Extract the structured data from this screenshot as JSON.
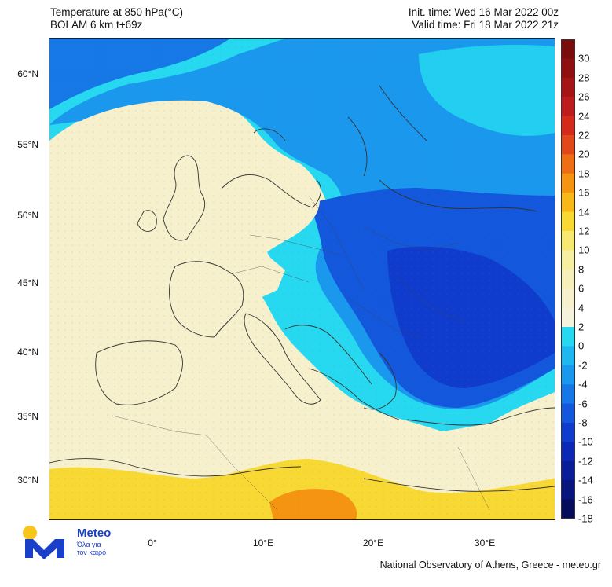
{
  "header": {
    "title_line1": "Temperature at 850 hPa(°C)",
    "title_line2": "BOLAM 6 km t+69z",
    "init_time": "Init. time: Wed 16 Mar 2022 00z",
    "valid_time": "Valid time: Fri 18 Mar 2022 21z"
  },
  "lat_labels": [
    "60°N",
    "55°N",
    "50°N",
    "45°N",
    "40°N",
    "35°N",
    "30°N"
  ],
  "lon_labels": [
    "0°",
    "10°E",
    "20°E",
    "30°E"
  ],
  "colorbar": {
    "labels": [
      "30",
      "28",
      "26",
      "24",
      "22",
      "20",
      "18",
      "16",
      "14",
      "12",
      "10",
      "8",
      "6",
      "4",
      "2",
      "0",
      "-2",
      "-4",
      "-6",
      "-8",
      "-10",
      "-12",
      "-14",
      "-16",
      "-18"
    ],
    "colors": [
      "#7a0c0c",
      "#8f1010",
      "#a51515",
      "#bd1c1c",
      "#d32a1a",
      "#e2491a",
      "#ee6e15",
      "#f59410",
      "#f8b817",
      "#f8d934",
      "#f7e872",
      "#f6eea0",
      "#f6efba",
      "#f6f0cc",
      "#f4f2dd",
      "#26d8f0",
      "#1fb7f0",
      "#1a98ee",
      "#1677e6",
      "#1257dc",
      "#0f3ccc",
      "#0c28b4",
      "#0a1d98",
      "#08157c",
      "#050d5c"
    ]
  },
  "logo": {
    "brand": "Meteo",
    "tagline_line1": "Όλα για",
    "tagline_line2": "τον καιρό",
    "colors": {
      "yellow": "#f7c51b",
      "blue": "#1a3fc8"
    }
  },
  "footer": "National Observatory of Athens, Greece - meteo.gr"
}
